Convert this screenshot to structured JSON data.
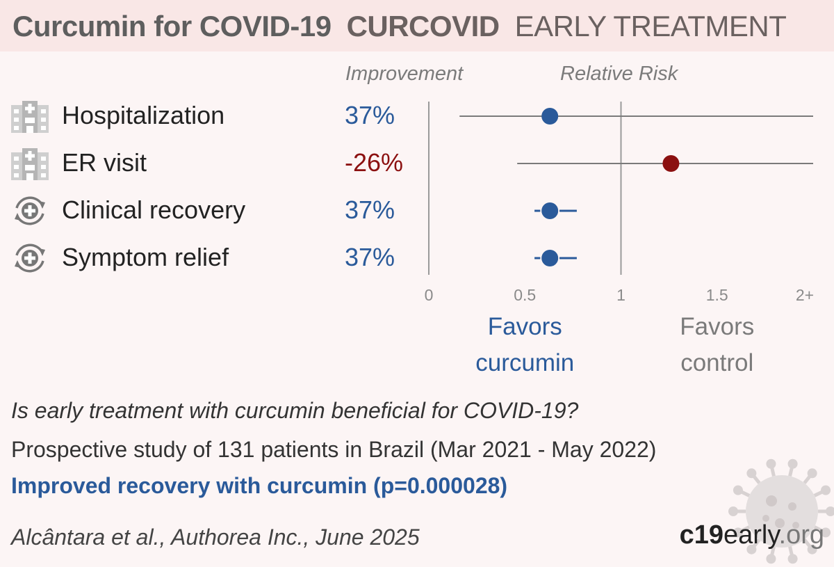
{
  "header": {
    "title_main": "Curcumin for COVID-19",
    "title_study": "CURCOVID",
    "title_stage": "EARLY TREATMENT"
  },
  "columns": {
    "improvement": "Improvement",
    "relative_risk": "Relative Risk"
  },
  "outcomes": [
    {
      "label": "Hospitalization",
      "improvement": "37%",
      "icon": "hospital-icon"
    },
    {
      "label": "ER visit",
      "improvement": "-26%",
      "icon": "hospital-icon"
    },
    {
      "label": "Clinical recovery",
      "improvement": "37%",
      "icon": "recovery-icon"
    },
    {
      "label": "Symptom relief",
      "improvement": "37%",
      "icon": "recovery-icon"
    }
  ],
  "chart_data": {
    "type": "scatter",
    "xlabel": "Relative Risk",
    "xlim": [
      0,
      2
    ],
    "x_ticks": [
      "0",
      "0.5",
      "1",
      "1.5",
      "2+"
    ],
    "reference_line": 1,
    "series": [
      {
        "category": "Hospitalization",
        "rr": 0.63,
        "ci": [
          0.16,
          2.0
        ]
      },
      {
        "category": "ER visit",
        "rr": 1.26,
        "ci": [
          0.46,
          2.0
        ]
      },
      {
        "category": "Clinical recovery",
        "rr": 0.63,
        "ci": [
          0.55,
          0.77
        ]
      },
      {
        "category": "Symptom relief",
        "rr": 0.63,
        "ci": [
          0.55,
          0.77
        ]
      }
    ],
    "favors_left": [
      "Favors",
      "curcumin"
    ],
    "favors_right": [
      "Favors",
      "control"
    ]
  },
  "colors": {
    "benefit": "#2a5a9a",
    "harm": "#8b1010",
    "neutral": "#7a7a7a",
    "header_bg": "#f9e7e6",
    "page_bg": "#fcf5f5"
  },
  "footer": {
    "question": "Is early treatment with curcumin beneficial for COVID-19?",
    "design": "Prospective study of 131 patients in Brazil (Mar 2021 - May 2022)",
    "conclusion": "Improved recovery with curcumin (p=0.000028)",
    "citation": "Alcântara et al., Authorea Inc., June 2025",
    "brand_bold": "c19",
    "brand_mid": "early",
    "brand_end": ".org"
  }
}
